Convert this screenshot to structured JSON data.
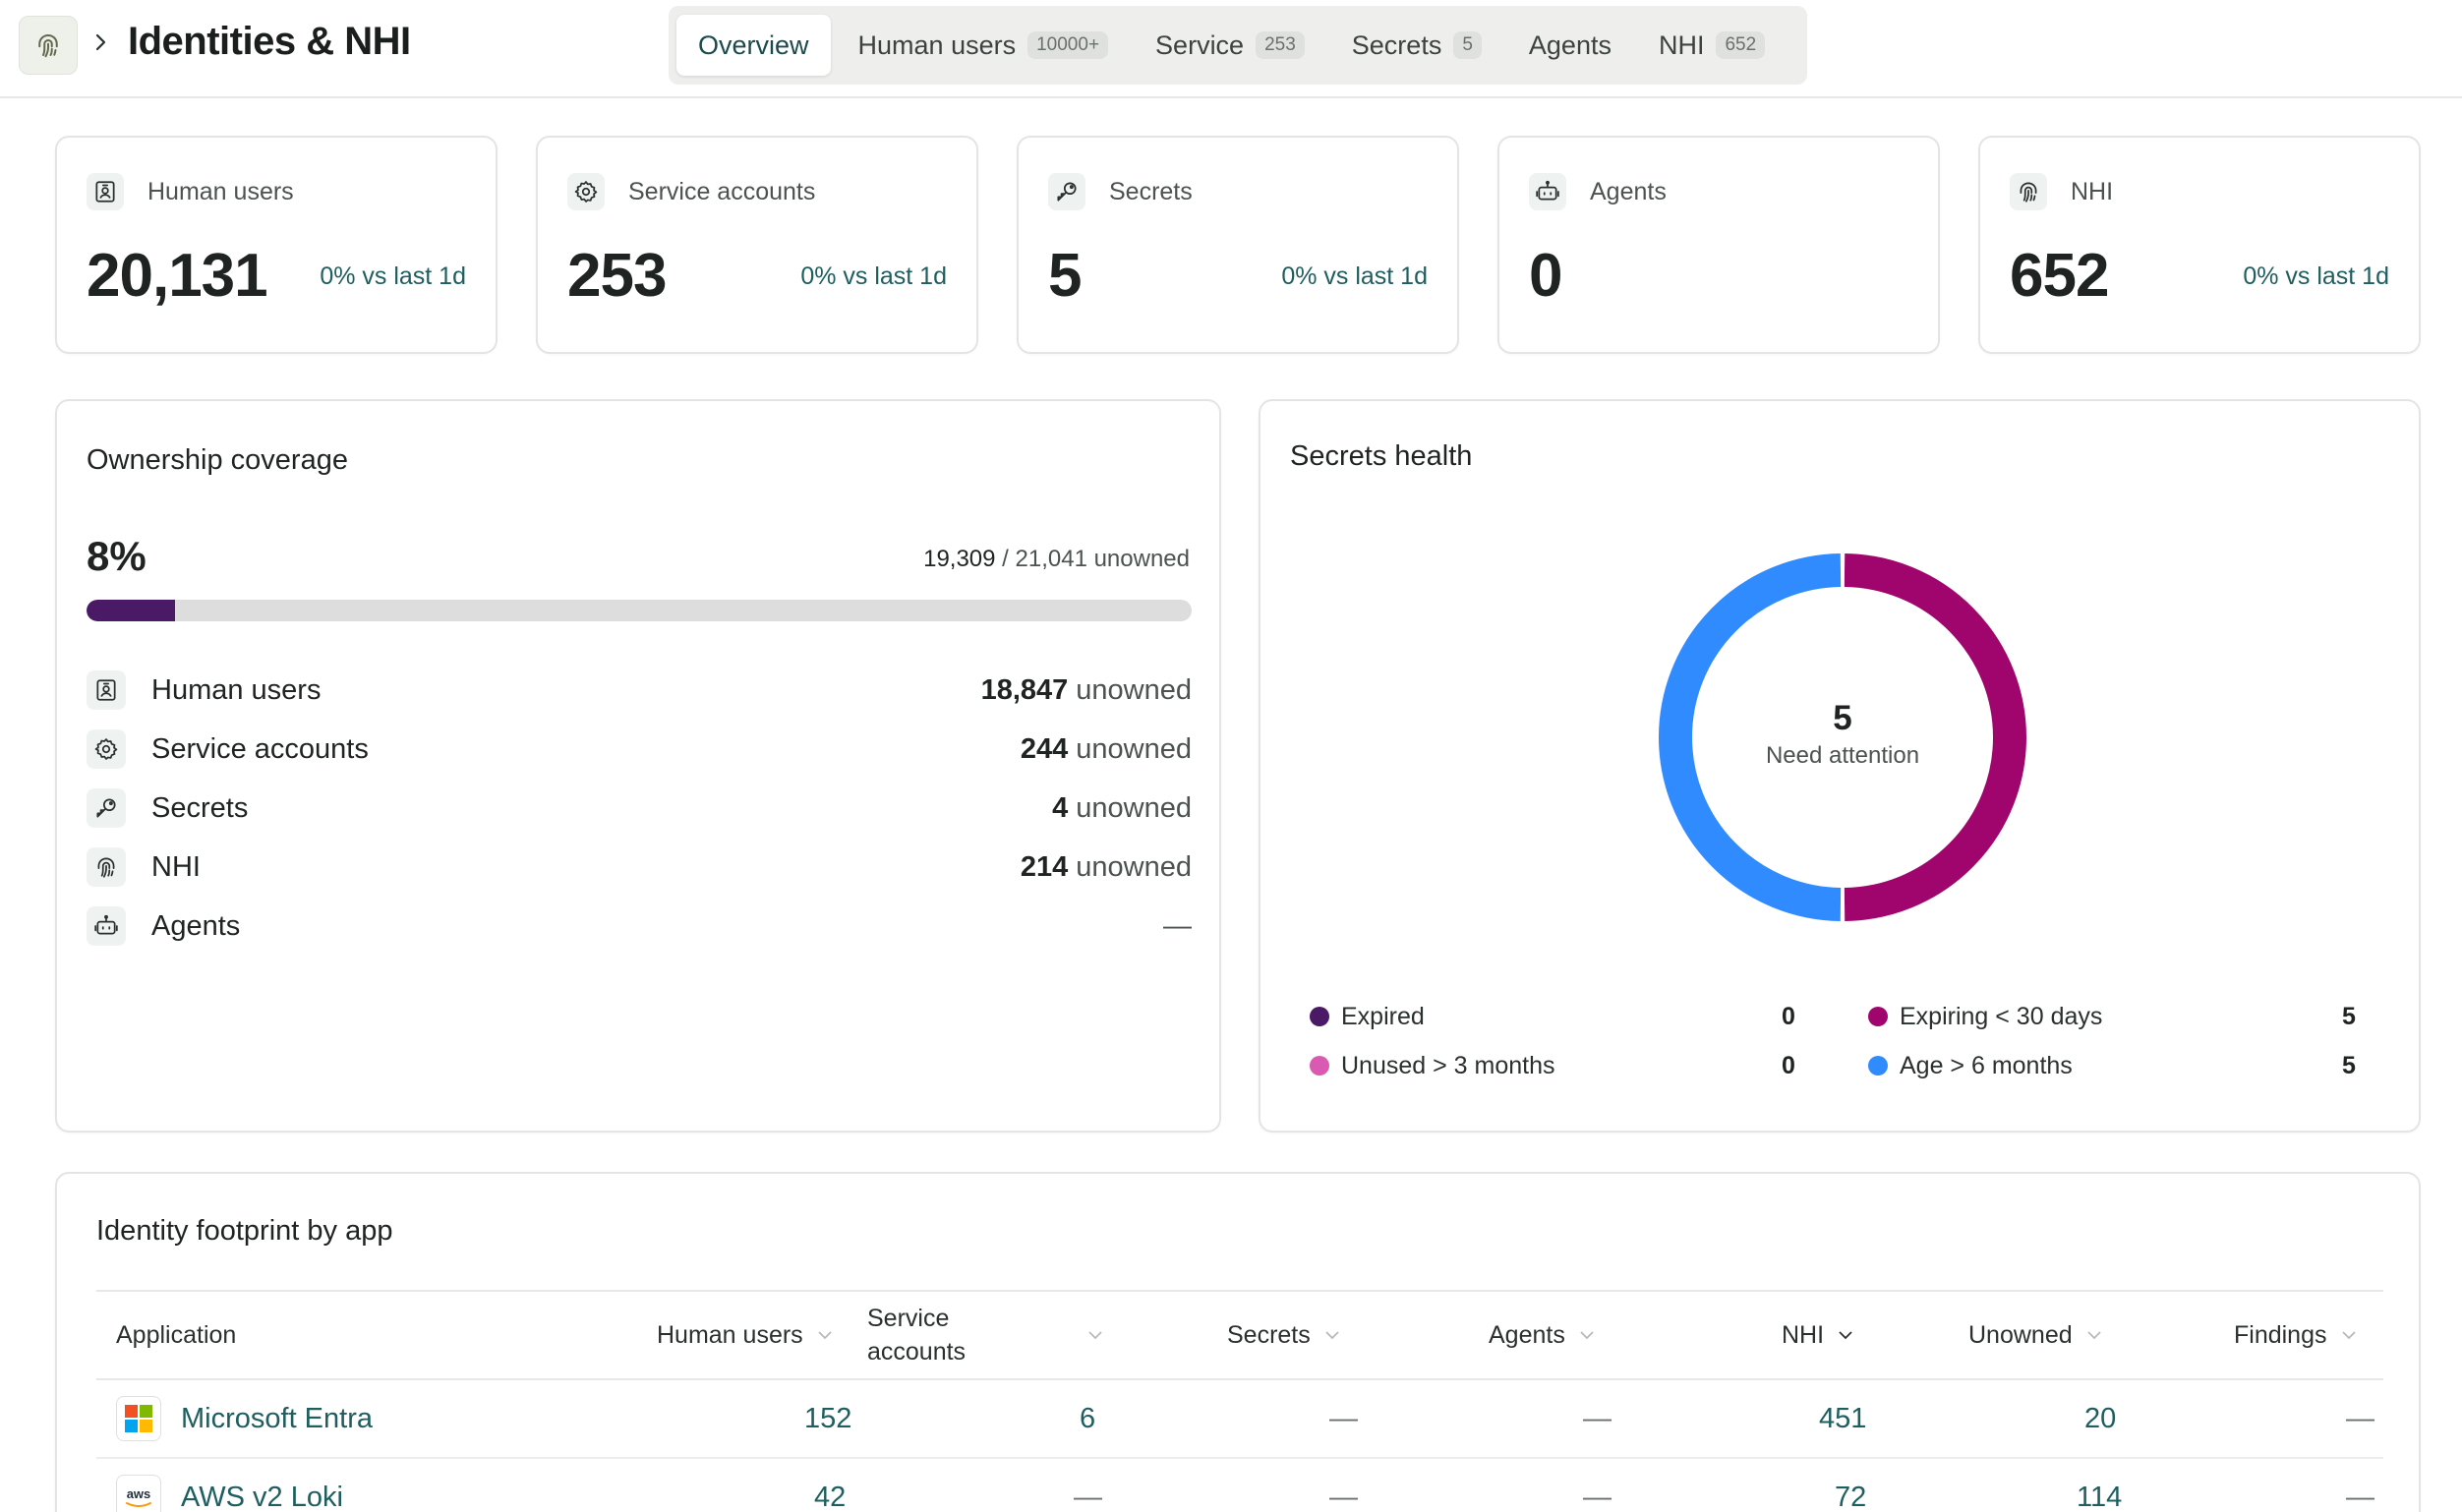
{
  "header": {
    "title": "Identities & NHI",
    "logo_icon": "fingerprint-icon",
    "tabs": [
      {
        "label": "Overview",
        "count": "",
        "active": true
      },
      {
        "label": "Human users",
        "count": "10000+"
      },
      {
        "label": "Service",
        "count": "253"
      },
      {
        "label": "Secrets",
        "count": "5"
      },
      {
        "label": "Agents",
        "count": ""
      },
      {
        "label": "NHI",
        "count": "652"
      }
    ]
  },
  "stats": [
    {
      "label": "Human users",
      "value": "20,131",
      "delta": "0% vs last 1d",
      "icon": "user-badge-icon"
    },
    {
      "label": "Service accounts",
      "value": "253",
      "delta": "0% vs last 1d",
      "icon": "gear-icon"
    },
    {
      "label": "Secrets",
      "value": "5",
      "delta": "0% vs last 1d",
      "icon": "key-icon"
    },
    {
      "label": "Agents",
      "value": "0",
      "delta": "",
      "icon": "robot-icon"
    },
    {
      "label": "NHI",
      "value": "652",
      "delta": "0% vs last 1d",
      "icon": "fingerprint-icon"
    }
  ],
  "ownership": {
    "title": "Ownership coverage",
    "percent": "8%",
    "percent_value": 8,
    "unowned_count": "19,309",
    "unowned_total": "/ 21,041 unowned",
    "rows": [
      {
        "label": "Human users",
        "count": "18,847",
        "suffix": "unowned",
        "icon": "user-badge-icon"
      },
      {
        "label": "Service accounts",
        "count": "244",
        "suffix": "unowned",
        "icon": "gear-icon"
      },
      {
        "label": "Secrets",
        "count": "4",
        "suffix": "unowned",
        "icon": "key-icon"
      },
      {
        "label": "NHI",
        "count": "214",
        "suffix": "unowned",
        "icon": "fingerprint-icon"
      },
      {
        "label": "Agents",
        "count": "",
        "suffix": "—",
        "icon": "robot-icon"
      }
    ]
  },
  "health": {
    "title": "Secrets health",
    "center_value": "5",
    "center_label": "Need attention",
    "legend": [
      {
        "label": "Expired",
        "value": "0",
        "color": "#4a1a66"
      },
      {
        "label": "Expiring < 30 days",
        "value": "5",
        "color": "#a0056e"
      },
      {
        "label": "Unused > 3 months",
        "value": "0",
        "color": "#d95ab0"
      },
      {
        "label": "Age > 6 months",
        "value": "5",
        "color": "#2f8bff"
      }
    ]
  },
  "chart_data": {
    "type": "pie",
    "title": "Secrets health",
    "categories": [
      "Expired",
      "Expiring < 30 days",
      "Unused > 3 months",
      "Age > 6 months"
    ],
    "values": [
      0,
      5,
      0,
      5
    ],
    "colors": [
      "#4a1a66",
      "#a0056e",
      "#d95ab0",
      "#2f8bff"
    ],
    "center_text": "5 Need attention",
    "legend_placement": "bottom"
  },
  "footprint": {
    "title": "Identity footprint by app",
    "columns": {
      "application": "Application",
      "human_users": "Human users",
      "service_accounts_1": "Service",
      "service_accounts_2": "accounts",
      "secrets": "Secrets",
      "agents": "Agents",
      "nhi": "NHI",
      "unowned": "Unowned",
      "findings": "Findings"
    },
    "rows": [
      {
        "app": "Microsoft Entra",
        "logo": "microsoft-logo",
        "human_users": "152",
        "service_accounts": "6",
        "secrets": "—",
        "agents": "—",
        "nhi": "451",
        "unowned": "20",
        "findings": "—"
      },
      {
        "app": "AWS v2 Loki",
        "logo": "aws-logo",
        "logo_text": "aws",
        "human_users": "42",
        "service_accounts": "—",
        "secrets": "—",
        "agents": "—",
        "nhi": "72",
        "unowned": "114",
        "findings": "—"
      }
    ]
  }
}
